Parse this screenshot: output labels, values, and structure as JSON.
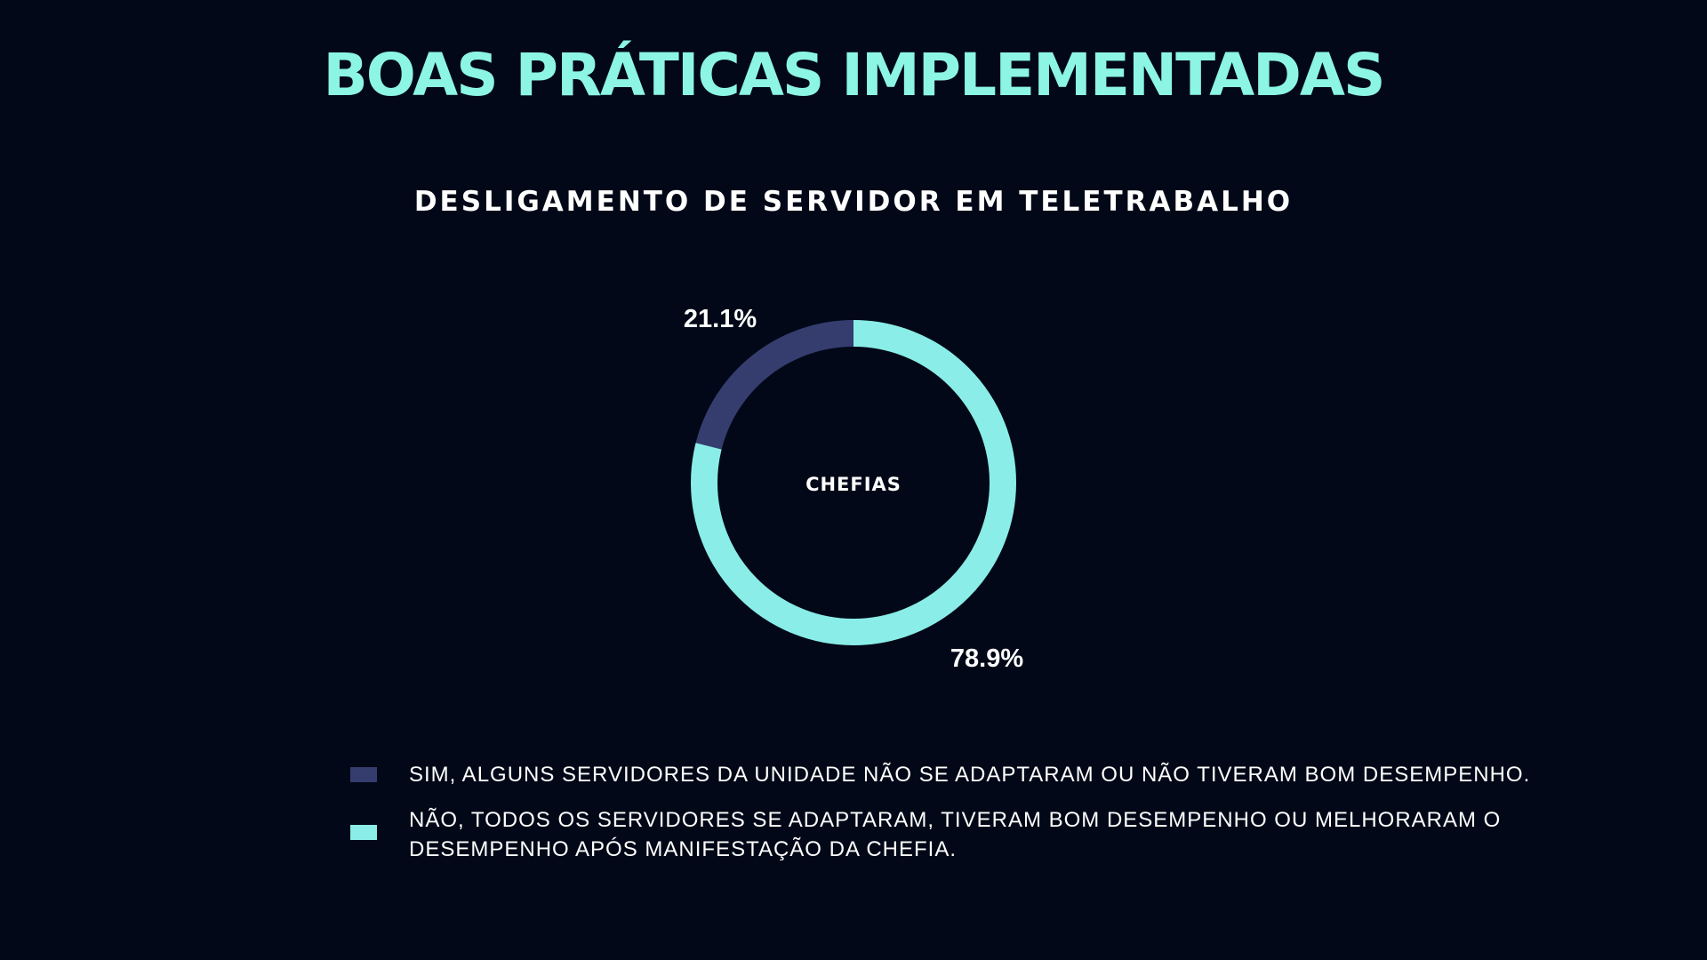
{
  "page": {
    "title": "BOAS PRÁTICAS IMPLEMENTADAS"
  },
  "chart_data": {
    "type": "pie",
    "title": "DESLIGAMENTO DE SERVIDOR EM TELETRABALHO",
    "center_label": "CHEFIAS",
    "slices": [
      {
        "label": "SIM, ALGUNS SERVIDORES DA UNIDADE NÃO SE ADAPTARAM OU NÃO TIVERAM BOM DESEMPENHO.",
        "value": 21.1,
        "value_label": "21.1%",
        "color": "#353d6e"
      },
      {
        "label": "NÃO, TODOS OS SERVIDORES SE ADAPTARAM, TIVERAM BOM DESEMPENHO OU MELHORARAM O DESEMPENHO APÓS MANIFESTAÇÃO DA CHEFIA.",
        "value": 78.9,
        "value_label": "78.9%",
        "color": "#8aede7"
      }
    ],
    "legend_position": "bottom"
  },
  "colors": {
    "background": "#020817",
    "title": "#8cf5e3",
    "text": "#ffffff"
  }
}
